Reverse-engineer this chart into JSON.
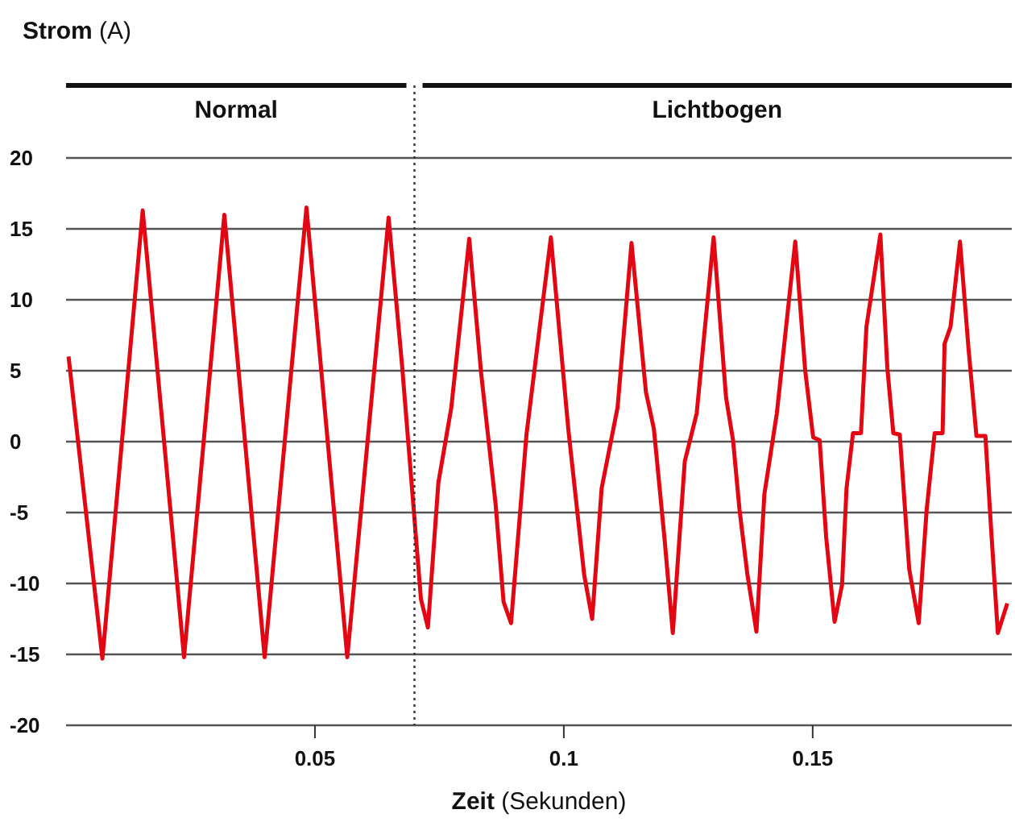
{
  "chart_data": {
    "type": "line",
    "ylabel": "Strom (A)",
    "xlabel": "Zeit (Sekunden)",
    "annotations": [
      "Normal",
      "Lichtbogen"
    ],
    "x": [
      0.0005,
      0.0073,
      0.0154,
      0.0237,
      0.0318,
      0.0399,
      0.0483,
      0.0565,
      0.0648,
      0.0675,
      0.0713,
      0.0727,
      0.0748,
      0.0774,
      0.081,
      0.0834,
      0.0863,
      0.0879,
      0.0894,
      0.0925,
      0.0974,
      0.1009,
      0.1041,
      0.1057,
      0.1076,
      0.1108,
      0.1136,
      0.1165,
      0.1181,
      0.1202,
      0.1219,
      0.1243,
      0.1267,
      0.1301,
      0.1326,
      0.134,
      0.1353,
      0.1369,
      0.1387,
      0.1403,
      0.1428,
      0.1465,
      0.1485,
      0.1501,
      0.1514,
      0.1527,
      0.1544,
      0.1559,
      0.1568,
      0.1581,
      0.1597,
      0.1608,
      0.1636,
      0.165,
      0.1662,
      0.1675,
      0.1694,
      0.1713,
      0.1729,
      0.1745,
      0.1761,
      0.1765,
      0.1777,
      0.1796,
      0.1813,
      0.1829,
      0.1847,
      0.1858,
      0.1872,
      0.1891
    ],
    "series": [
      {
        "color": "#e30613",
        "values": [
          6.0,
          -15.3,
          16.3,
          -15.2,
          16.0,
          -15.2,
          16.5,
          -15.2,
          15.8,
          5.4,
          -11.1,
          -13.1,
          -2.9,
          2.4,
          14.3,
          4.8,
          -4.4,
          -11.3,
          -12.8,
          0.5,
          14.4,
          0.9,
          -9.4,
          -12.5,
          -3.3,
          2.4,
          14.0,
          3.5,
          0.9,
          -6.7,
          -13.5,
          -1.4,
          2.0,
          14.4,
          3.1,
          0.1,
          -4.8,
          -9.4,
          -13.4,
          -3.7,
          2.0,
          14.1,
          5.0,
          0.3,
          0.1,
          -6.7,
          -12.7,
          -10.1,
          -3.3,
          0.6,
          0.6,
          8.1,
          14.6,
          5.2,
          0.6,
          0.5,
          -9.0,
          -12.8,
          -4.8,
          0.6,
          0.6,
          6.9,
          8.1,
          14.1,
          6.6,
          0.4,
          0.4,
          -5.9,
          -13.5,
          -11.4
        ]
      }
    ],
    "xlim": [
      0,
      0.19
    ],
    "xticks": [
      0.05,
      0.1,
      0.15
    ],
    "ylim": [
      -20,
      20
    ],
    "yticks": [
      -20,
      -15,
      -10,
      -5,
      0,
      5,
      10,
      15,
      20
    ],
    "grid": "y",
    "legend": false,
    "marker": "none",
    "line_style": "solid",
    "ref_lines": [
      {
        "axis": "x",
        "value": 0.07,
        "line_style": "dotted",
        "color": "#333333"
      }
    ]
  }
}
